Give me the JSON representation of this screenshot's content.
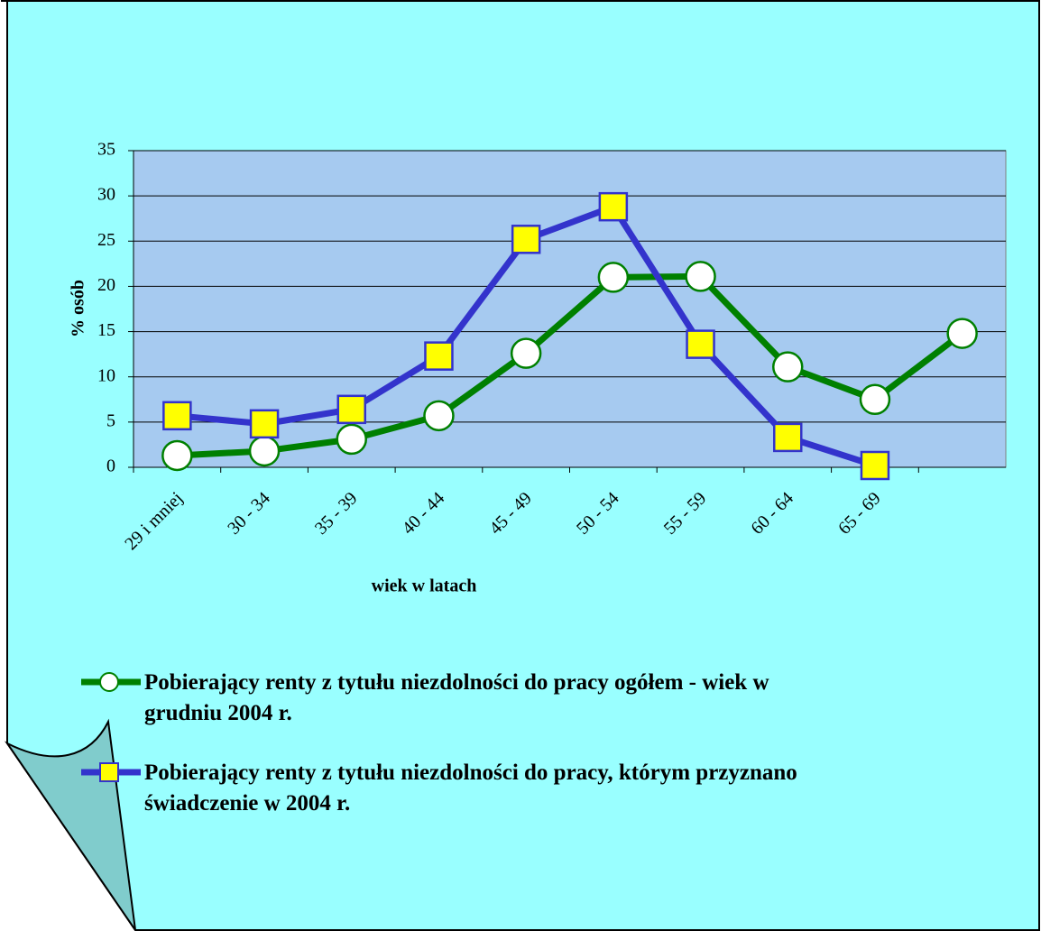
{
  "chart_data": {
    "type": "line",
    "categories": [
      "29 i mniej",
      "30 - 34",
      "35 - 39",
      "40 - 44",
      "45 - 49",
      "50 - 54",
      "55 - 59",
      "60 - 64",
      "65 - 69",
      null
    ],
    "series": [
      {
        "name": "Pobierający renty z tytułu niezdolności do pracy ogółem - wiek w grudniu 2004 r.",
        "color": "#008000",
        "marker": "circle",
        "values": [
          1.3,
          1.8,
          3.1,
          5.7,
          12.6,
          21.0,
          21.1,
          11.1,
          7.5,
          14.8
        ]
      },
      {
        "name": "Pobierający renty z tytułu niezdolności do pracy, którym przyznano świadczenie w 2004 r.",
        "color": "#3333cc",
        "marker": "square",
        "values": [
          5.7,
          4.8,
          6.4,
          12.3,
          25.2,
          28.8,
          13.6,
          3.3,
          0.2,
          null
        ]
      }
    ],
    "xlabel": "wiek w latach",
    "ylabel": "% osób",
    "ylim": [
      0,
      35
    ],
    "yticks": [
      0,
      5,
      10,
      15,
      20,
      25,
      30,
      35
    ],
    "grid": true
  }
}
